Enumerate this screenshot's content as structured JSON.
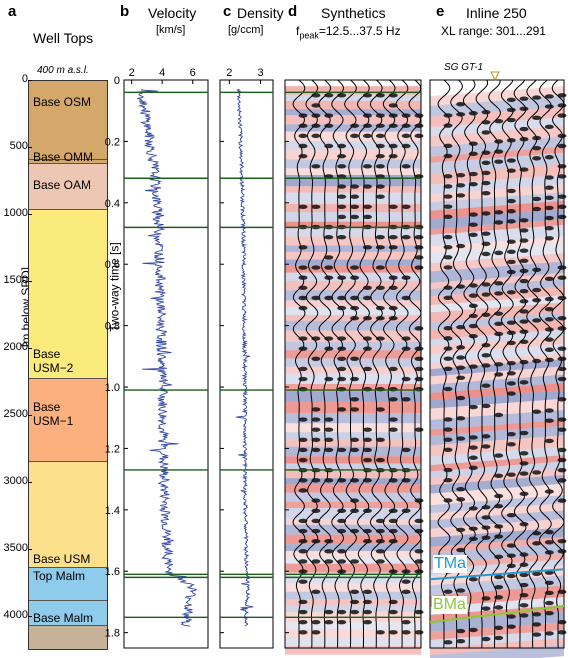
{
  "panels": {
    "a": {
      "letter": "a",
      "title": "Well Tops",
      "elevation_label": "400 m a.s.l.",
      "y_axis_label": "[m below SRD]",
      "depth_ticks": [
        "0",
        "500",
        "1000",
        "1500",
        "2000",
        "2500",
        "3000",
        "3500",
        "4000"
      ],
      "formations": [
        {
          "name": "Base OSM",
          "top_m": 0,
          "base_m": 590,
          "color": "#d4a86a"
        },
        {
          "name": "Base OMM",
          "top_m": 590,
          "base_m": 620,
          "color": "#d4a86a"
        },
        {
          "name": "Base OAM",
          "top_m": 620,
          "base_m": 960,
          "color": "#edc6b4"
        },
        {
          "name": "Base USM−2",
          "top_m": 960,
          "base_m": 2220,
          "color": "#fbeb7c"
        },
        {
          "name": "Base USM−1",
          "top_m": 2220,
          "base_m": 2840,
          "color": "#fbb07d"
        },
        {
          "name": "Base USM",
          "top_m": 2840,
          "base_m": 3630,
          "color": "#fde08c"
        },
        {
          "name": "Top Malm",
          "top_m": 3630,
          "base_m": 3880,
          "color": "#8fcbeb"
        },
        {
          "name": "Base Malm",
          "top_m": 3880,
          "base_m": 4060,
          "color": "#8fcbeb"
        },
        {
          "name": "",
          "top_m": 4060,
          "base_m": 4250,
          "color": "#c7b299"
        }
      ]
    },
    "b": {
      "letter": "b",
      "title": "Velocity",
      "unit": "[km/s]",
      "x_ticks": [
        "2",
        "4",
        "6"
      ],
      "y_axis_label": "Two-way time [s]",
      "time_ticks": [
        "0",
        "0.2",
        "0.4",
        "0.6",
        "0.8",
        "1.0",
        "1.2",
        "1.4",
        "1.6",
        "1.8"
      ]
    },
    "c": {
      "letter": "c",
      "title": "Density",
      "unit": "[g/ccm]",
      "x_ticks": [
        "2",
        "3"
      ]
    },
    "d": {
      "letter": "d",
      "title": "Synthetics",
      "subtitle_prefix": "f",
      "subtitle_sub": "peak",
      "subtitle_suffix": "=12.5...37.5 Hz"
    },
    "e": {
      "letter": "e",
      "title": "Inline 250",
      "subtitle": "XL range: 301...291",
      "well_label": "SG GT-1",
      "horizons": [
        {
          "name": "TMa",
          "color": "#1f9bd7"
        },
        {
          "name": "BMa",
          "color": "#8dc63f"
        }
      ]
    }
  },
  "chart_data": {
    "type": "line",
    "axes": {
      "time_s": [
        0,
        1.85
      ],
      "depth_m": [
        0,
        4250
      ],
      "velocity_kms": [
        1.5,
        7
      ],
      "density_gccm": [
        1.7,
        3.4
      ]
    },
    "horizon_times_s": [
      0.04,
      0.32,
      0.48,
      1.01,
      1.27,
      1.61,
      1.62,
      1.75
    ],
    "velocity_trend": {
      "x": [
        0.04,
        0.3,
        0.5,
        1.0,
        1.3,
        1.6,
        1.65,
        1.75
      ],
      "y": [
        2.7,
        3.5,
        3.8,
        4.0,
        4.1,
        4.4,
        6.0,
        5.6
      ]
    },
    "density_trend": {
      "x": [
        0.04,
        0.3,
        0.5,
        1.0,
        1.3,
        1.6,
        1.65,
        1.75
      ],
      "y": [
        2.3,
        2.4,
        2.45,
        2.5,
        2.5,
        2.55,
        2.6,
        2.55
      ]
    }
  },
  "colors": {
    "trace": "#3347a8",
    "horizon": "#1a5e1a",
    "positive": "#d9281e",
    "negative": "#1c2f8c",
    "well_label": "#b8941e"
  }
}
